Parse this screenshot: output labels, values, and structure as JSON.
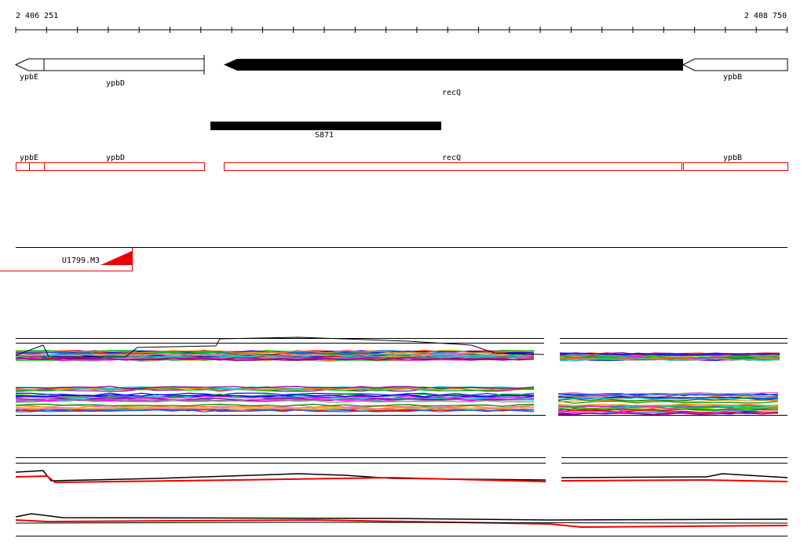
{
  "ruler": {
    "start_label": "2 406 251",
    "end_label": "2 408 750"
  },
  "genes": [
    {
      "label": "ypbE"
    },
    {
      "label": "ypbD"
    },
    {
      "label": "recQ"
    },
    {
      "label": "ypbB"
    }
  ],
  "feature": {
    "label": "S871"
  },
  "annotation": [
    {
      "label": "ypbE"
    },
    {
      "label": "ypbD"
    },
    {
      "label": "recQ"
    },
    {
      "label": "ypbB"
    }
  ],
  "track": {
    "label": "U1799.M3"
  }
}
